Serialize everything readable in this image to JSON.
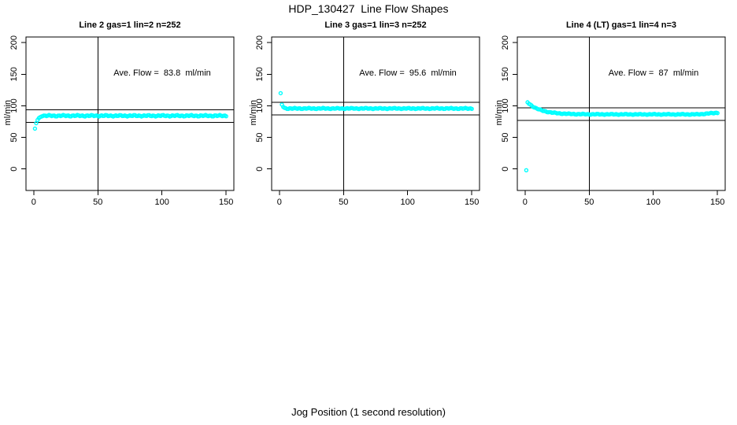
{
  "figure": {
    "title": "HDP_130427  Line Flow Shapes",
    "xlabel": "Jog Position (1 second resolution)",
    "bg_color": "#ffffff",
    "fg_color": "#000000",
    "point_color": "#00ffff"
  },
  "chart_data": [
    {
      "type": "scatter",
      "title": "Line 2 gas=1 lin=2 n=252",
      "ylabel": "ml/min",
      "annotation": "Ave. Flow =  83.8  ml/min",
      "ave_flow_ml_min": 83.8,
      "n": 252,
      "xlim": [
        0,
        150
      ],
      "ylim": [
        0,
        200
      ],
      "xticks": [
        0,
        50,
        100,
        150
      ],
      "yticks": [
        0,
        50,
        100,
        150,
        200
      ],
      "vline_x": 50,
      "hlines_y": [
        93.8,
        73.8
      ],
      "points_head": [
        [
          1,
          64
        ],
        [
          2,
          72.5
        ],
        [
          3,
          77.5
        ],
        [
          4,
          80.5
        ],
        [
          5,
          82
        ],
        [
          6,
          83
        ],
        [
          7,
          83.7
        ]
      ],
      "band": {
        "x_from": 8,
        "x_to": 150,
        "x_step": 1,
        "level": 84.3,
        "spread": 1.2
      },
      "grid": false,
      "legend": false
    },
    {
      "type": "scatter",
      "title": "Line 3 gas=1 lin=3 n=252",
      "ylabel": "ml/min",
      "annotation": "Ave. Flow =  95.6  ml/min",
      "ave_flow_ml_min": 95.6,
      "n": 252,
      "xlim": [
        0,
        150
      ],
      "ylim": [
        0,
        200
      ],
      "xticks": [
        0,
        50,
        100,
        150
      ],
      "yticks": [
        0,
        50,
        100,
        150,
        200
      ],
      "vline_x": 50,
      "hlines_y": [
        105.6,
        85.6
      ],
      "points_head": [
        [
          1,
          120
        ],
        [
          2,
          102
        ],
        [
          3,
          98.2
        ],
        [
          4,
          96.8
        ],
        [
          5,
          96.2
        ]
      ],
      "band": {
        "x_from": 6,
        "x_to": 150,
        "x_step": 1,
        "level": 95.8,
        "spread": 0.9
      },
      "grid": false,
      "legend": false
    },
    {
      "type": "scatter",
      "title": "Line 4 (LT) gas=1 lin=4 n=3",
      "ylabel": "ml/min",
      "annotation": "Ave. Flow =  87  ml/min",
      "ave_flow_ml_min": 87,
      "n": 3,
      "xlim": [
        0,
        150
      ],
      "ylim": [
        0,
        200
      ],
      "xticks": [
        0,
        50,
        100,
        150
      ],
      "yticks": [
        0,
        50,
        100,
        150,
        200
      ],
      "vline_x": 50,
      "hlines_y": [
        97,
        77
      ],
      "points_head": [
        [
          1,
          -2
        ]
      ],
      "decay": {
        "x_from": 2,
        "x_to": 150,
        "x_step": 1,
        "asymptote": 86.5,
        "amplitude": 19,
        "tau": 10,
        "tail_rise_from": 135,
        "tail_rise_rate": 0.17,
        "spread": 0.8
      },
      "grid": false,
      "legend": false
    }
  ]
}
